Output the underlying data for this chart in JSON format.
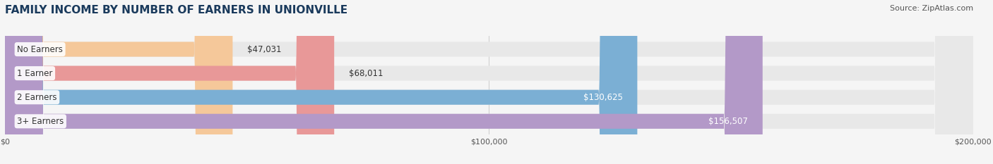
{
  "title": "FAMILY INCOME BY NUMBER OF EARNERS IN UNIONVILLE",
  "source": "Source: ZipAtlas.com",
  "categories": [
    "No Earners",
    "1 Earner",
    "2 Earners",
    "3+ Earners"
  ],
  "values": [
    47031,
    68011,
    130625,
    156507
  ],
  "labels": [
    "$47,031",
    "$68,011",
    "$130,625",
    "$156,507"
  ],
  "bar_colors": [
    "#f5c89a",
    "#e89898",
    "#7bafd4",
    "#b399c8"
  ],
  "bar_bg_color": "#e8e8e8",
  "label_colors_dark": [
    "#333333",
    "#333333"
  ],
  "label_colors_light": [
    "#ffffff",
    "#ffffff"
  ],
  "max_value": 200000,
  "xtick_values": [
    0,
    100000,
    200000
  ],
  "xtick_labels": [
    "$0",
    "$100,000",
    "$200,000"
  ],
  "title_color": "#1a3a5c",
  "title_fontsize": 11,
  "source_fontsize": 8,
  "background_color": "#f5f5f5",
  "bar_height": 0.62,
  "label_fontsize": 8.5,
  "category_fontsize": 8.5,
  "threshold": 0.55
}
